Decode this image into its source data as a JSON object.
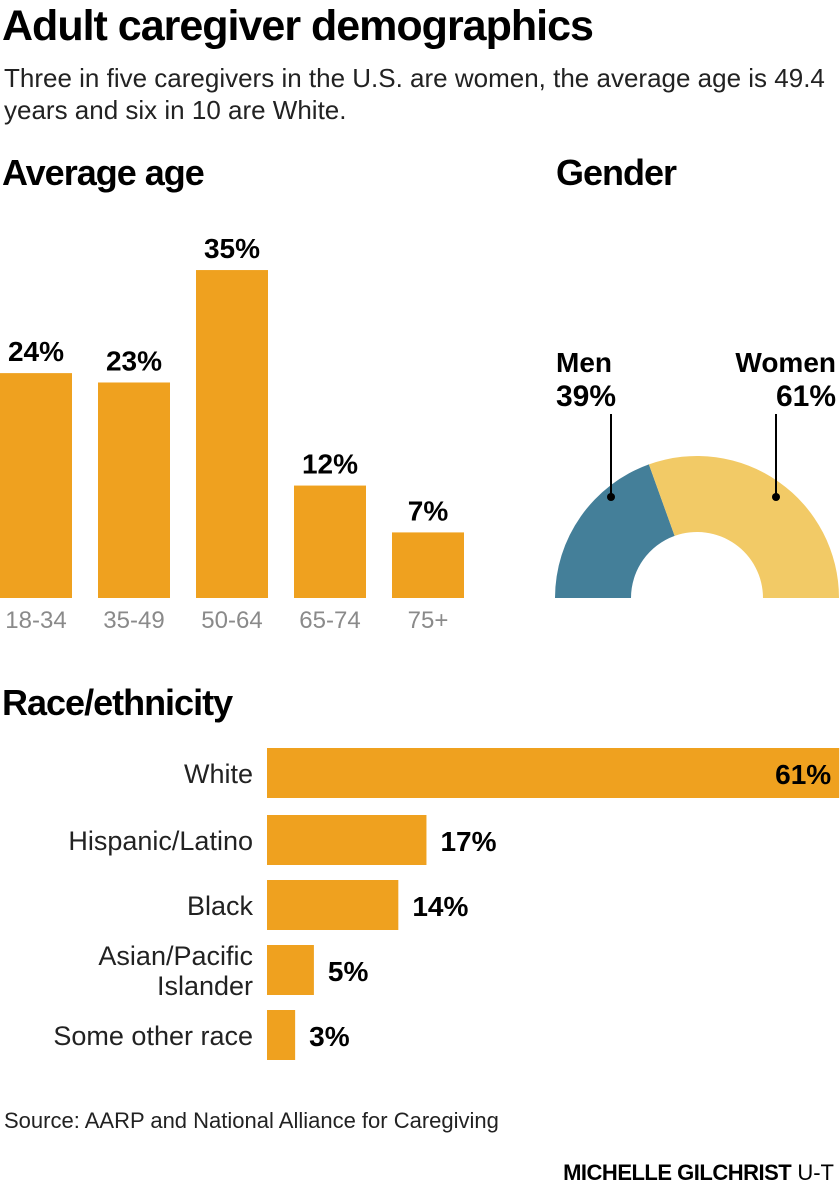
{
  "title": "Adult caregiver demographics",
  "subtitle": "Three in five caregivers in the U.S. are women, the average age is 49.4 years and six in 10 are White.",
  "colors": {
    "bar": "#EFA11F",
    "men": "#447F99",
    "women": "#F2CA66",
    "tick": "#8a8a8a"
  },
  "chart_data": [
    {
      "type": "bar",
      "title": "Average age",
      "categories": [
        "18-34",
        "35-49",
        "50-64",
        "65-74",
        "75+"
      ],
      "values": [
        24,
        23,
        35,
        12,
        7
      ],
      "labels": [
        "24%",
        "23%",
        "35%",
        "12%",
        "7%"
      ],
      "grid": false
    },
    {
      "type": "pie",
      "title": "Gender",
      "style": "half-donut",
      "categories": [
        "Men",
        "Women"
      ],
      "values": [
        39,
        61
      ],
      "labels": [
        "39%",
        "61%"
      ]
    },
    {
      "type": "bar",
      "orientation": "horizontal",
      "title": "Race/ethnicity",
      "categories": [
        "White",
        "Hispanic/Latino",
        "Black",
        "Asian/Pacific Islander",
        "Some other race"
      ],
      "category_lines": [
        [
          "White"
        ],
        [
          "Hispanic/Latino"
        ],
        [
          "Black"
        ],
        [
          "Asian/Pacific",
          "Islander"
        ],
        [
          "Some other race"
        ]
      ],
      "values": [
        61,
        17,
        14,
        5,
        3
      ],
      "labels": [
        "61%",
        "17%",
        "14%",
        "5%",
        "3%"
      ],
      "grid": false
    }
  ],
  "source": "Source: AARP and National Alliance for Caregiving",
  "credit": {
    "name": "MICHELLE GILCHRIST",
    "org": "U-T"
  }
}
